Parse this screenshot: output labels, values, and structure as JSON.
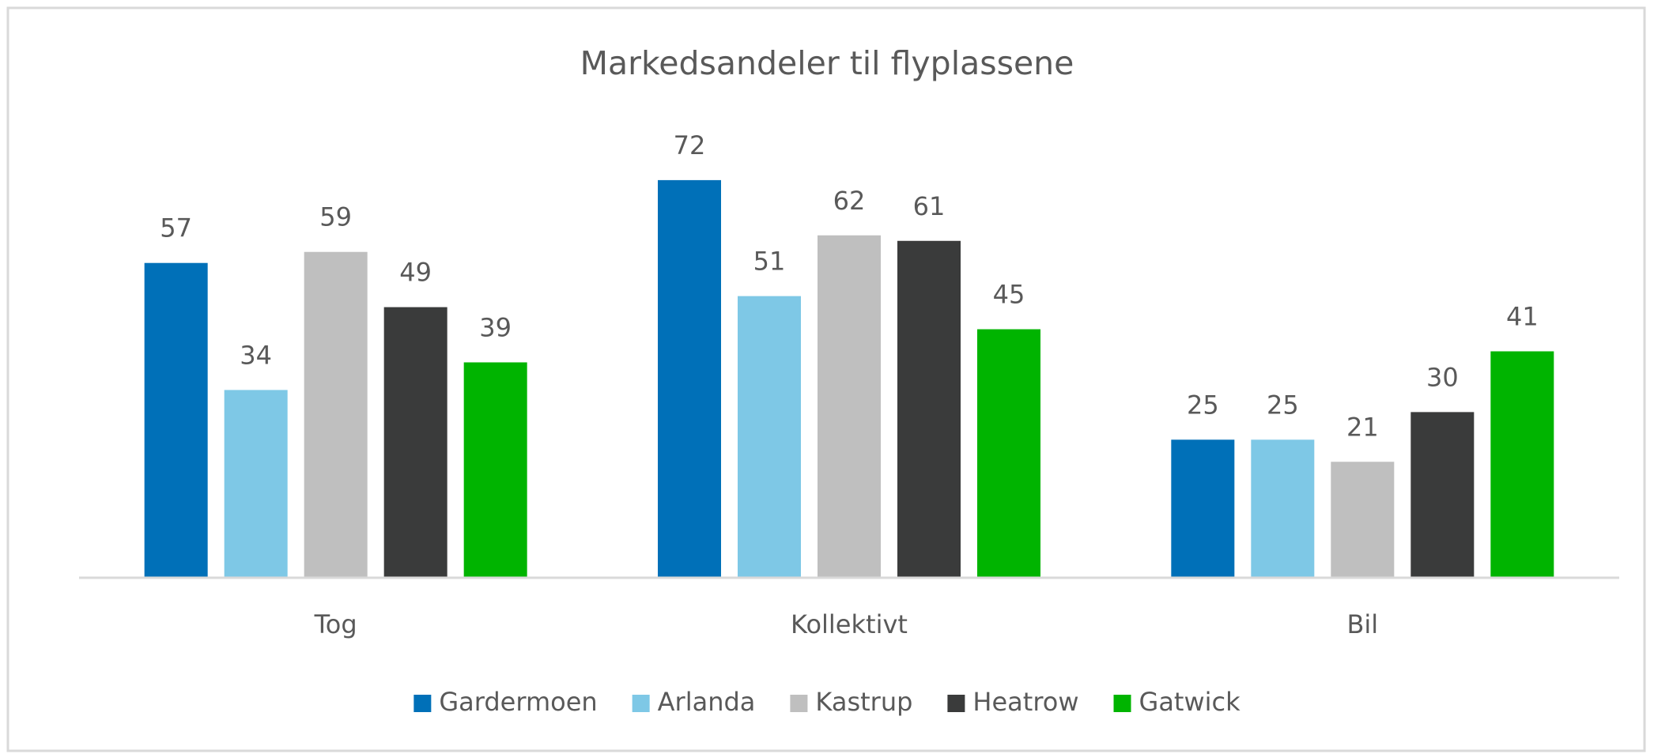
{
  "chart_data": {
    "type": "bar",
    "title": "Markedsandeler til flyplassene",
    "categories": [
      "Tog",
      "Kollektivt",
      "Bil"
    ],
    "series": [
      {
        "name": "Gardermoen",
        "color": "#0070b8",
        "values": [
          57,
          72,
          25
        ]
      },
      {
        "name": "Arlanda",
        "color": "#7ec8e6",
        "values": [
          34,
          51,
          25
        ]
      },
      {
        "name": "Kastrup",
        "color": "#bfbfbf",
        "values": [
          59,
          62,
          21
        ]
      },
      {
        "name": "Heatrow",
        "color": "#3a3b3b",
        "values": [
          49,
          61,
          30
        ]
      },
      {
        "name": "Gatwick",
        "color": "#00b400",
        "values": [
          39,
          45,
          41
        ]
      }
    ],
    "ylim": [
      0,
      80
    ],
    "legend": "bottom"
  }
}
